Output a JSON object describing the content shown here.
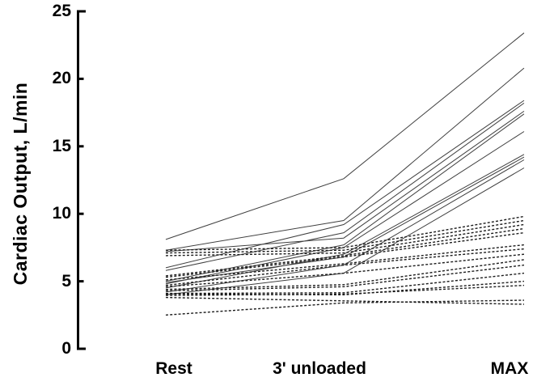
{
  "chart_data": {
    "type": "line",
    "title": "",
    "ylabel": "Cardiac Output, L/min",
    "xlabel": "",
    "categories": [
      "Rest",
      "3' unloaded",
      "MAX"
    ],
    "ylim": [
      0,
      25
    ],
    "yticks": [
      0,
      5,
      10,
      15,
      20,
      25
    ],
    "grid": false,
    "legend_position": "none",
    "line_color": "#3f3f3f",
    "axis_color": "#000000",
    "series": [
      {
        "line_style": "solid",
        "values": [
          8.1,
          12.6,
          23.4
        ]
      },
      {
        "line_style": "solid",
        "values": [
          7.3,
          9.5,
          20.8
        ]
      },
      {
        "line_style": "solid",
        "values": [
          6.0,
          9.2,
          18.4
        ]
      },
      {
        "line_style": "solid",
        "values": [
          5.8,
          8.6,
          18.2
        ]
      },
      {
        "line_style": "solid",
        "values": [
          7.2,
          8.2,
          17.6
        ]
      },
      {
        "line_style": "solid",
        "values": [
          5.0,
          7.7,
          17.4
        ]
      },
      {
        "line_style": "solid",
        "values": [
          4.8,
          7.5,
          16.1
        ]
      },
      {
        "line_style": "solid",
        "values": [
          4.5,
          7.0,
          14.4
        ]
      },
      {
        "line_style": "solid",
        "values": [
          4.9,
          6.8,
          14.2
        ]
      },
      {
        "line_style": "solid",
        "values": [
          4.2,
          6.2,
          14.0
        ]
      },
      {
        "line_style": "solid",
        "values": [
          4.0,
          5.6,
          13.4
        ]
      },
      {
        "line_style": "dashed",
        "values": [
          7.3,
          7.5,
          9.8
        ]
      },
      {
        "line_style": "dashed",
        "values": [
          7.1,
          7.3,
          9.5
        ]
      },
      {
        "line_style": "dashed",
        "values": [
          6.9,
          7.1,
          9.2
        ]
      },
      {
        "line_style": "dashed",
        "values": [
          5.4,
          6.9,
          8.9
        ]
      },
      {
        "line_style": "dashed",
        "values": [
          5.3,
          6.8,
          8.6
        ]
      },
      {
        "line_style": "dashed",
        "values": [
          5.1,
          6.3,
          7.7
        ]
      },
      {
        "line_style": "dashed",
        "values": [
          4.7,
          6.2,
          7.4
        ]
      },
      {
        "line_style": "dashed",
        "values": [
          4.6,
          5.6,
          7.0
        ]
      },
      {
        "line_style": "dashed",
        "values": [
          4.4,
          4.75,
          6.6
        ]
      },
      {
        "line_style": "dashed",
        "values": [
          4.3,
          4.6,
          6.2
        ]
      },
      {
        "line_style": "dashed",
        "values": [
          4.1,
          4.15,
          5.6
        ]
      },
      {
        "line_style": "dashed",
        "values": [
          4.05,
          4.0,
          5.0
        ]
      },
      {
        "line_style": "dashed",
        "values": [
          3.95,
          4.05,
          4.7
        ]
      },
      {
        "line_style": "dashed",
        "values": [
          3.8,
          3.55,
          3.3
        ]
      },
      {
        "line_style": "dashed",
        "values": [
          2.5,
          3.4,
          3.6
        ]
      }
    ]
  }
}
